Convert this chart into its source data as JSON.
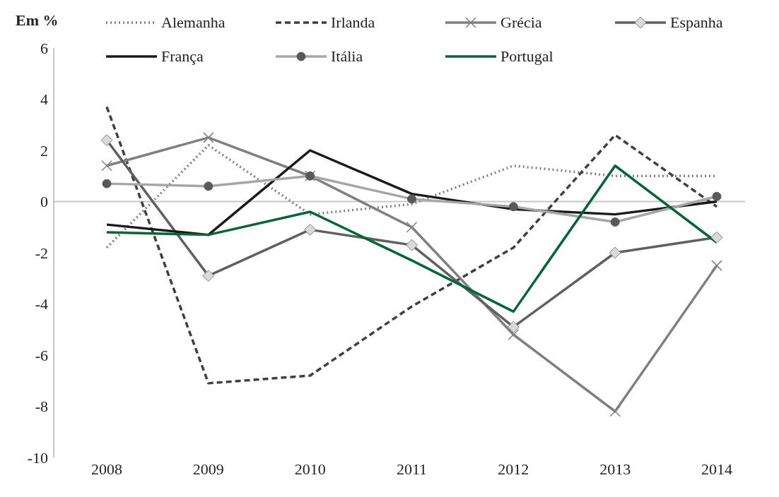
{
  "chart_data": {
    "type": "line",
    "ylabel": "Em %",
    "categories": [
      "2008",
      "2009",
      "2010",
      "2011",
      "2012",
      "2013",
      "2014"
    ],
    "series": [
      {
        "name": "Alemanha",
        "color": "#808080",
        "line_style": "dotted",
        "marker": "none",
        "values": [
          -1.8,
          2.2,
          -0.5,
          -0.1,
          1.4,
          1.0,
          1.0
        ]
      },
      {
        "name": "Irlanda",
        "color": "#404040",
        "line_style": "dashed",
        "marker": "none",
        "values": [
          3.7,
          -7.1,
          -6.8,
          -4.1,
          -1.8,
          2.6,
          -0.2
        ]
      },
      {
        "name": "Grécia",
        "color": "#808080",
        "line_style": "solid",
        "marker": "cross",
        "values": [
          1.4,
          2.5,
          1.0,
          -1.0,
          -5.2,
          -8.2,
          -2.5
        ]
      },
      {
        "name": "Espanha",
        "color": "#606060",
        "line_style": "solid",
        "marker": "diamond",
        "values": [
          2.4,
          -2.9,
          -1.1,
          -1.7,
          -4.9,
          -2.0,
          -1.4
        ]
      },
      {
        "name": "França",
        "color": "#1a1a1a",
        "line_style": "solid",
        "marker": "none",
        "values": [
          -0.9,
          -1.3,
          2.0,
          0.3,
          -0.3,
          -0.5,
          0.0
        ]
      },
      {
        "name": "Itália",
        "color": "#a6a6a6",
        "line_style": "solid",
        "marker": "circle",
        "values": [
          0.7,
          0.6,
          1.0,
          0.1,
          -0.2,
          -0.8,
          0.2
        ]
      },
      {
        "name": "Portugal",
        "color": "#006633",
        "line_style": "solid",
        "marker": "none",
        "values": [
          -1.2,
          -1.3,
          -0.4,
          -2.3,
          -4.3,
          1.4,
          -1.6
        ]
      }
    ],
    "ylim": [
      -10,
      6
    ],
    "yticks": [
      -10,
      -8,
      -6,
      -4,
      -2,
      0,
      2,
      4,
      6
    ],
    "ref_lines": [
      {
        "axis": "y",
        "value": 0,
        "color": "#c8c8c8"
      }
    ],
    "grid": false,
    "legend": "top"
  }
}
